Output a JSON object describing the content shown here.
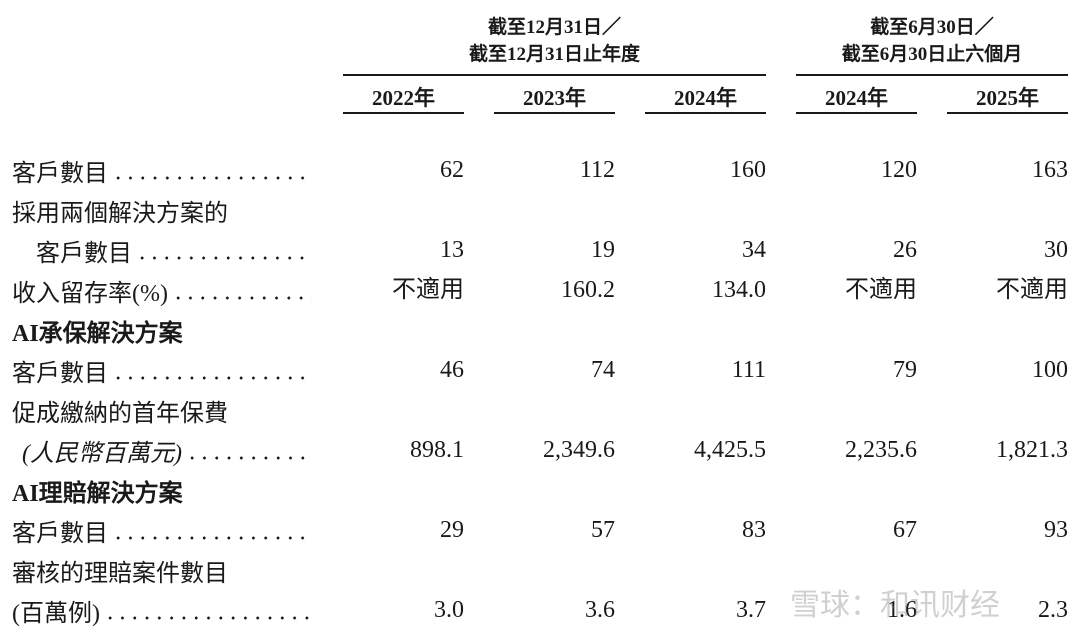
{
  "table": {
    "column_groups": [
      {
        "lines": [
          "截至12月31日／",
          "截至12月31日止年度"
        ]
      },
      {
        "lines": [
          "截至6月30日／",
          "截至6月30日止六個月"
        ]
      }
    ],
    "years": [
      "2022年",
      "2023年",
      "2024年",
      "2024年",
      "2025年"
    ],
    "rows": [
      {
        "label": "客戶數目",
        "values": [
          "62",
          "112",
          "160",
          "120",
          "163"
        ]
      },
      {
        "label": "採用兩個解決方案的"
      },
      {
        "label": "客戶數目",
        "indent": true,
        "values": [
          "13",
          "19",
          "34",
          "26",
          "30"
        ]
      },
      {
        "label": "收入留存率(%)",
        "values": [
          "不適用",
          "160.2",
          "134.0",
          "不適用",
          "不適用"
        ]
      },
      {
        "label": "AI承保解決方案",
        "bold": true
      },
      {
        "label": "客戶數目",
        "values": [
          "46",
          "74",
          "111",
          "79",
          "100"
        ]
      },
      {
        "label": "促成繳納的首年保費"
      },
      {
        "label": "(人民幣百萬元)",
        "indent": true,
        "italic": true,
        "values": [
          "898.1",
          "2,349.6",
          "4,425.5",
          "2,235.6",
          "1,821.3"
        ]
      },
      {
        "label": "AI理賠解決方案",
        "bold": true
      },
      {
        "label": "客戶數目",
        "values": [
          "29",
          "57",
          "83",
          "67",
          "93"
        ]
      },
      {
        "label": "審核的理賠案件數目"
      },
      {
        "label": "(百萬例)",
        "values": [
          "3.0",
          "3.6",
          "3.7",
          "1.6",
          "2.3"
        ]
      }
    ]
  },
  "watermark": "雪球：和讯财经"
}
